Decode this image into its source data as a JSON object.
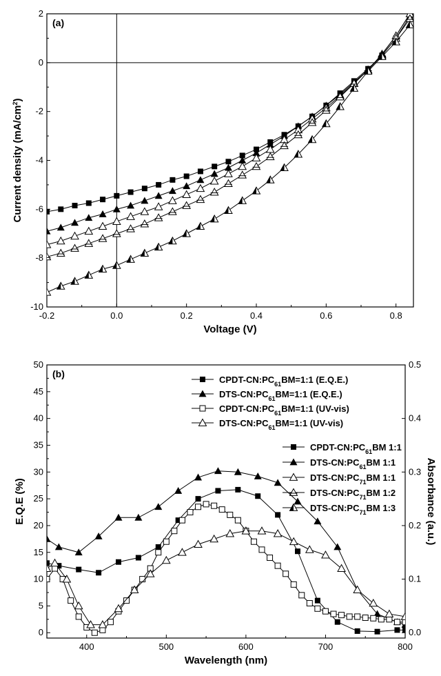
{
  "chart_data": [
    {
      "type": "line",
      "panel_label": "(a)",
      "xlabel": "Voltage (V)",
      "ylabel": "Current density (mA/cm2)",
      "ylabel_base": "Current density (mA/cm",
      "ylabel_sup": "2",
      "ylabel_tail": ")",
      "xlim": [
        -0.2,
        0.85
      ],
      "ylim": [
        -10,
        2
      ],
      "xticks": [
        "-0.2",
        "0.0",
        "0.2",
        "0.4",
        "0.6",
        "0.8"
      ],
      "xtick_values": [
        -0.2,
        0.0,
        0.2,
        0.4,
        0.6,
        0.8
      ],
      "yticks": [
        "2",
        "0",
        "-2",
        "-4",
        "-6",
        "-8",
        "-10"
      ],
      "ytick_values": [
        2,
        0,
        -2,
        -4,
        -6,
        -8,
        -10
      ],
      "legend_position": "lower-right",
      "series": [
        {
          "name": "CPDT-CN:PC61BM 1:1",
          "label_parts": [
            "CPDT-CN:PC",
            "61",
            "BM 1:1"
          ],
          "marker": "square-filled",
          "x": [
            -0.2,
            -0.16,
            -0.12,
            -0.08,
            -0.04,
            0.0,
            0.04,
            0.08,
            0.12,
            0.16,
            0.2,
            0.24,
            0.28,
            0.32,
            0.36,
            0.4,
            0.44,
            0.48,
            0.52,
            0.56,
            0.6,
            0.64,
            0.68,
            0.72,
            0.76,
            0.8,
            0.84
          ],
          "y": [
            -6.1,
            -6.0,
            -5.85,
            -5.75,
            -5.6,
            -5.45,
            -5.3,
            -5.15,
            -5.0,
            -4.8,
            -4.65,
            -4.45,
            -4.25,
            -4.05,
            -3.8,
            -3.55,
            -3.25,
            -2.95,
            -2.6,
            -2.2,
            -1.75,
            -1.25,
            -0.75,
            -0.25,
            0.3,
            1.0,
            1.9
          ]
        },
        {
          "name": "DTS-CN:PC61BM 1:1",
          "label_parts": [
            "DTS-CN:PC",
            "61",
            "BM 1:1"
          ],
          "marker": "triangle-filled",
          "x": [
            -0.2,
            -0.16,
            -0.12,
            -0.08,
            -0.04,
            0.0,
            0.04,
            0.08,
            0.12,
            0.16,
            0.2,
            0.24,
            0.28,
            0.32,
            0.36,
            0.4,
            0.44,
            0.48,
            0.52,
            0.56,
            0.6,
            0.64,
            0.68,
            0.72,
            0.76,
            0.8,
            0.84
          ],
          "y": [
            -6.9,
            -6.75,
            -6.55,
            -6.35,
            -6.2,
            -6.0,
            -5.85,
            -5.65,
            -5.45,
            -5.25,
            -5.05,
            -4.8,
            -4.55,
            -4.3,
            -4.0,
            -3.7,
            -3.35,
            -3.0,
            -2.6,
            -2.2,
            -1.75,
            -1.3,
            -0.8,
            -0.3,
            0.35,
            1.1,
            2.0
          ]
        },
        {
          "name": "DTS-CN:PC71BM 1:1",
          "label_parts": [
            "DTS-CN:PC",
            "71",
            "BM 1:1"
          ],
          "marker": "triangle-open",
          "x": [
            -0.2,
            -0.16,
            -0.12,
            -0.08,
            -0.04,
            0.0,
            0.04,
            0.08,
            0.12,
            0.16,
            0.2,
            0.24,
            0.28,
            0.32,
            0.36,
            0.4,
            0.44,
            0.48,
            0.52,
            0.56,
            0.6,
            0.64,
            0.68,
            0.72,
            0.76,
            0.8,
            0.84
          ],
          "y": [
            -7.45,
            -7.3,
            -7.1,
            -6.9,
            -6.7,
            -6.5,
            -6.3,
            -6.1,
            -5.9,
            -5.65,
            -5.4,
            -5.15,
            -4.85,
            -4.55,
            -4.25,
            -3.9,
            -3.55,
            -3.15,
            -2.75,
            -2.3,
            -1.85,
            -1.35,
            -0.85,
            -0.3,
            0.35,
            1.1,
            2.0
          ]
        },
        {
          "name": "DTS-CN:PC71BM 1:2",
          "label_parts": [
            "DTS-CN:PC",
            "71",
            "BM 1:2"
          ],
          "marker": "triangle-open-cross",
          "x": [
            -0.2,
            -0.16,
            -0.12,
            -0.08,
            -0.04,
            0.0,
            0.04,
            0.08,
            0.12,
            0.16,
            0.2,
            0.24,
            0.28,
            0.32,
            0.36,
            0.4,
            0.44,
            0.48,
            0.52,
            0.56,
            0.6,
            0.64,
            0.68,
            0.72,
            0.76,
            0.8,
            0.84
          ],
          "y": [
            -7.95,
            -7.8,
            -7.6,
            -7.4,
            -7.2,
            -7.0,
            -6.8,
            -6.6,
            -6.35,
            -6.1,
            -5.85,
            -5.6,
            -5.3,
            -4.95,
            -4.6,
            -4.25,
            -3.85,
            -3.4,
            -2.95,
            -2.45,
            -1.95,
            -1.4,
            -0.85,
            -0.3,
            0.3,
            1.0,
            1.8
          ]
        },
        {
          "name": "DTS-CN:PC71BM 1:3",
          "label_parts": [
            "DTS-CN:PC",
            "71",
            "BM 1:3"
          ],
          "marker": "triangle-half",
          "x": [
            -0.2,
            -0.16,
            -0.12,
            -0.08,
            -0.04,
            0.0,
            0.04,
            0.08,
            0.12,
            0.16,
            0.2,
            0.24,
            0.28,
            0.32,
            0.36,
            0.4,
            0.44,
            0.48,
            0.52,
            0.56,
            0.6,
            0.64,
            0.68,
            0.72,
            0.76,
            0.8,
            0.84
          ],
          "y": [
            -9.4,
            -9.15,
            -8.95,
            -8.7,
            -8.45,
            -8.3,
            -8.05,
            -7.8,
            -7.55,
            -7.3,
            -7.0,
            -6.7,
            -6.4,
            -6.05,
            -5.65,
            -5.25,
            -4.8,
            -4.3,
            -3.75,
            -3.15,
            -2.5,
            -1.8,
            -1.05,
            -0.35,
            0.25,
            0.85,
            1.55
          ]
        }
      ]
    },
    {
      "type": "line",
      "panel_label": "(b)",
      "xlabel": "Wavelength (nm)",
      "ylabel": "E.Q.E (%)",
      "y2label": "Absorbance (a.u.)",
      "xlim": [
        350,
        800
      ],
      "ylim": [
        -1,
        50
      ],
      "y2lim": [
        -0.01,
        0.5
      ],
      "xticks": [
        "400",
        "500",
        "600",
        "700",
        "800"
      ],
      "xtick_values": [
        400,
        500,
        600,
        700,
        800
      ],
      "yticks": [
        "0",
        "5",
        "10",
        "15",
        "20",
        "25",
        "30",
        "35",
        "40",
        "45",
        "50"
      ],
      "ytick_values": [
        0,
        5,
        10,
        15,
        20,
        25,
        30,
        35,
        40,
        45,
        50
      ],
      "y2ticks": [
        "0.0",
        "0.1",
        "0.2",
        "0.3",
        "0.4",
        "0.5"
      ],
      "y2tick_values": [
        0.0,
        0.1,
        0.2,
        0.3,
        0.4,
        0.5
      ],
      "legend_position": "top-right",
      "series": [
        {
          "name": "CPDT-CN:PC61BM=1:1 (E.Q.E.)",
          "label_parts": [
            "CPDT-CN:PC",
            "61",
            "BM=1:1 (E.Q.E.)"
          ],
          "marker": "square-filled",
          "axis": "left",
          "x": [
            350,
            365,
            390,
            415,
            440,
            465,
            490,
            515,
            540,
            565,
            590,
            615,
            640,
            665,
            690,
            715,
            740,
            765,
            790,
            800
          ],
          "y": [
            13,
            12.5,
            11.8,
            11.2,
            13.2,
            14,
            16,
            21,
            25,
            26.5,
            26.7,
            25.5,
            22,
            15.2,
            6,
            2,
            0.3,
            0.2,
            0.5,
            0.5
          ]
        },
        {
          "name": "DTS-CN:PC61BM=1:1 (E.Q.E.)",
          "label_parts": [
            "DTS-CN:PC",
            "61",
            "BM=1:1 (E.Q.E.)"
          ],
          "marker": "triangle-filled",
          "axis": "left",
          "x": [
            350,
            365,
            390,
            415,
            440,
            465,
            490,
            515,
            540,
            565,
            590,
            615,
            640,
            665,
            690,
            715,
            740,
            765,
            790,
            800
          ],
          "y": [
            17.5,
            16,
            15,
            18,
            21.5,
            21.5,
            23.5,
            26.5,
            29,
            30.2,
            30,
            29.2,
            28,
            24.5,
            20.8,
            16,
            8,
            3.5,
            2,
            1.5
          ]
        },
        {
          "name": "CPDT-CN:PC61BM=1:1 (UV-vis)",
          "label_parts": [
            "CPDT-CN:PC",
            "61",
            "BM=1:1 (UV-vis)"
          ],
          "marker": "square-open",
          "axis": "right",
          "x": [
            350,
            360,
            370,
            380,
            390,
            400,
            410,
            420,
            430,
            440,
            450,
            460,
            470,
            480,
            490,
            500,
            510,
            520,
            530,
            540,
            550,
            560,
            570,
            580,
            590,
            600,
            610,
            620,
            630,
            640,
            650,
            660,
            670,
            680,
            690,
            700,
            710,
            720,
            730,
            740,
            750,
            760,
            770,
            780,
            790,
            800
          ],
          "y": [
            0.1,
            0.12,
            0.1,
            0.06,
            0.03,
            0.01,
            0.0,
            0.005,
            0.02,
            0.04,
            0.06,
            0.08,
            0.1,
            0.12,
            0.15,
            0.17,
            0.19,
            0.21,
            0.225,
            0.235,
            0.24,
            0.237,
            0.23,
            0.22,
            0.21,
            0.19,
            0.17,
            0.155,
            0.14,
            0.125,
            0.11,
            0.09,
            0.07,
            0.055,
            0.045,
            0.04,
            0.035,
            0.033,
            0.03,
            0.03,
            0.028,
            0.027,
            0.025,
            0.025,
            0.02,
            0.02
          ]
        },
        {
          "name": "DTS-CN:PC61BM=1:1 (UV-vis)",
          "label_parts": [
            "DTS-CN:PC",
            "61",
            "BM=1:1 (UV-vis)"
          ],
          "marker": "triangle-open",
          "axis": "right",
          "x": [
            350,
            360,
            375,
            390,
            405,
            420,
            440,
            460,
            480,
            500,
            520,
            540,
            560,
            580,
            600,
            620,
            640,
            660,
            680,
            700,
            720,
            740,
            760,
            780,
            800
          ],
          "y": [
            0.12,
            0.13,
            0.1,
            0.05,
            0.015,
            0.015,
            0.045,
            0.08,
            0.11,
            0.135,
            0.15,
            0.165,
            0.175,
            0.185,
            0.19,
            0.19,
            0.185,
            0.17,
            0.155,
            0.145,
            0.12,
            0.08,
            0.055,
            0.035,
            0.03
          ]
        }
      ]
    }
  ]
}
